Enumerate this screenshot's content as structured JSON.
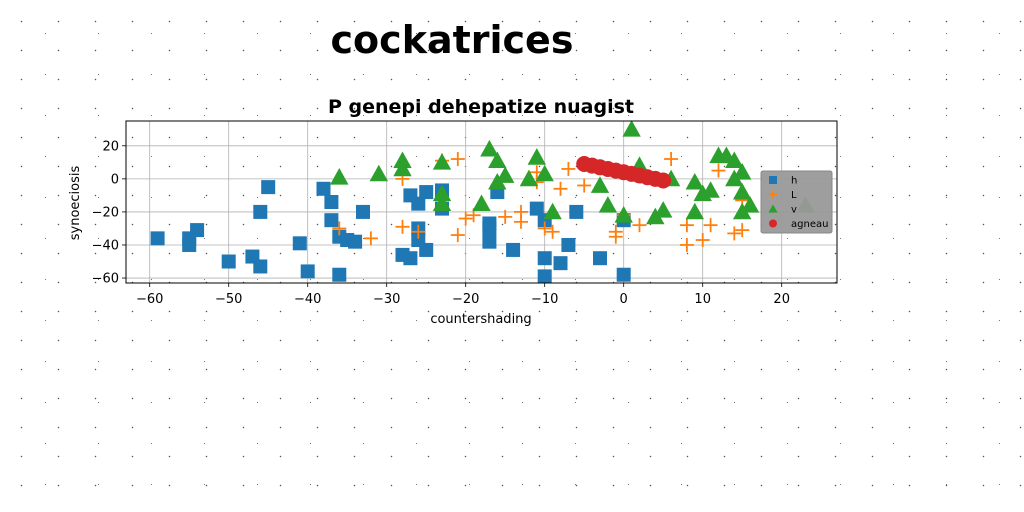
{
  "page": {
    "title": "cockatrices"
  },
  "chart_data": {
    "type": "scatter",
    "title": "P genepi dehepatize nuagist",
    "xlabel": "countershading",
    "ylabel": "synoeciosis",
    "xlim": [
      -63,
      27
    ],
    "ylim": [
      -63,
      35
    ],
    "xticks": [
      -60,
      -50,
      -40,
      -30,
      -20,
      -10,
      0,
      10,
      20
    ],
    "yticks": [
      -60,
      -40,
      -20,
      0,
      20
    ],
    "grid": true,
    "legend_position": "right",
    "series": [
      {
        "name": "h",
        "marker": "square",
        "color": "#1f77b4",
        "points": [
          [
            -59,
            -36
          ],
          [
            -55,
            -40
          ],
          [
            -55,
            -36
          ],
          [
            -54,
            -31
          ],
          [
            -50,
            -50
          ],
          [
            -47,
            -47
          ],
          [
            -46,
            -20
          ],
          [
            -46,
            -53
          ],
          [
            -45,
            -5
          ],
          [
            -41,
            -39
          ],
          [
            -40,
            -56
          ],
          [
            -38,
            -6
          ],
          [
            -37,
            -14
          ],
          [
            -37,
            -25
          ],
          [
            -36,
            -35
          ],
          [
            -36,
            -58
          ],
          [
            -35,
            -37
          ],
          [
            -34,
            -38
          ],
          [
            -33,
            -20
          ],
          [
            -28,
            -46
          ],
          [
            -27,
            -48
          ],
          [
            -27,
            -10
          ],
          [
            -26,
            -15
          ],
          [
            -26,
            -30
          ],
          [
            -26,
            -37
          ],
          [
            -25,
            -43
          ],
          [
            -25,
            -8
          ],
          [
            -23,
            -7
          ],
          [
            -23,
            -18
          ],
          [
            -17,
            -38
          ],
          [
            -17,
            -30
          ],
          [
            -17,
            -27
          ],
          [
            -16,
            -8
          ],
          [
            -14,
            -43
          ],
          [
            -11,
            -18
          ],
          [
            -10,
            -25
          ],
          [
            -10,
            -48
          ],
          [
            -10,
            -59
          ],
          [
            -8,
            -51
          ],
          [
            -7,
            -40
          ],
          [
            -6,
            -20
          ],
          [
            -3,
            -48
          ],
          [
            0,
            -58
          ],
          [
            0,
            -25
          ]
        ]
      },
      {
        "name": "L",
        "marker": "plus",
        "color": "#ff7f0e",
        "points": [
          [
            -36,
            -30
          ],
          [
            -32,
            -36
          ],
          [
            -28,
            -29
          ],
          [
            -28,
            0
          ],
          [
            -26,
            -32
          ],
          [
            -23,
            11
          ],
          [
            -21,
            12
          ],
          [
            -21,
            -34
          ],
          [
            -20,
            -24
          ],
          [
            -19,
            -22
          ],
          [
            -15,
            -23
          ],
          [
            -13,
            -20
          ],
          [
            -13,
            -26
          ],
          [
            -11,
            4
          ],
          [
            -11,
            -2
          ],
          [
            -10,
            -30
          ],
          [
            -9,
            -32
          ],
          [
            -8,
            -6
          ],
          [
            -7,
            6
          ],
          [
            -5,
            -4
          ],
          [
            -1,
            -32
          ],
          [
            -1,
            -35
          ],
          [
            0,
            -22
          ],
          [
            2,
            -28
          ],
          [
            6,
            12
          ],
          [
            8,
            -28
          ],
          [
            8,
            -40
          ],
          [
            10,
            -37
          ],
          [
            11,
            -28
          ],
          [
            12,
            5
          ],
          [
            14,
            -33
          ],
          [
            15,
            -31
          ],
          [
            15,
            -13
          ]
        ]
      },
      {
        "name": "v",
        "marker": "triangle",
        "color": "#2ca02c",
        "points": [
          [
            -36,
            1
          ],
          [
            -31,
            3
          ],
          [
            -28,
            11
          ],
          [
            -28,
            6
          ],
          [
            -23,
            -15
          ],
          [
            -23,
            -9
          ],
          [
            -23,
            10
          ],
          [
            -18,
            -15
          ],
          [
            -17,
            18
          ],
          [
            -16,
            11
          ],
          [
            -16,
            -2
          ],
          [
            -15,
            2
          ],
          [
            -12,
            0
          ],
          [
            -11,
            13
          ],
          [
            -10,
            3
          ],
          [
            -9,
            -20
          ],
          [
            -3,
            -4
          ],
          [
            -2,
            -16
          ],
          [
            0,
            -22
          ],
          [
            1,
            30
          ],
          [
            2,
            8
          ],
          [
            4,
            -23
          ],
          [
            5,
            -19
          ],
          [
            6,
            0
          ],
          [
            9,
            -2
          ],
          [
            9,
            -20
          ],
          [
            10,
            -9
          ],
          [
            11,
            -7
          ],
          [
            12,
            14
          ],
          [
            13,
            14
          ],
          [
            14,
            11
          ],
          [
            14,
            0
          ],
          [
            15,
            4
          ],
          [
            15,
            -8
          ],
          [
            15,
            -20
          ],
          [
            16,
            -16
          ],
          [
            23,
            -16
          ]
        ]
      },
      {
        "name": "agneau",
        "marker": "circle",
        "color": "#d62728",
        "points": [
          [
            -5,
            9
          ],
          [
            -4,
            8
          ],
          [
            -3,
            7
          ],
          [
            -2,
            6
          ],
          [
            -1,
            5
          ],
          [
            0,
            4
          ],
          [
            1,
            3
          ],
          [
            2,
            2
          ],
          [
            3,
            1
          ],
          [
            4,
            0
          ],
          [
            5,
            -1
          ]
        ]
      }
    ]
  }
}
